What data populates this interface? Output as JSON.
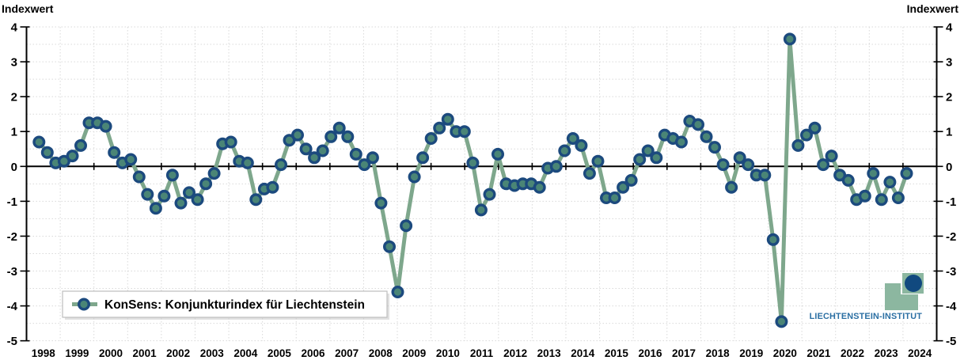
{
  "axis_titles": {
    "left": "Indexwert",
    "right": "Indexwert"
  },
  "legend": {
    "label": "KonSens: Konjunkturindex für Liechtenstein"
  },
  "logo": {
    "text": "LIECHTENSTEIN-INSTITUT"
  },
  "chart_data": {
    "type": "line",
    "title": "",
    "frequency": "quarterly",
    "x_start": "1998-Q1",
    "x_end": "2024-Q1",
    "ylabel_left": "Indexwert",
    "ylabel_right": "Indexwert",
    "ylim": [
      -5,
      4
    ],
    "y_tick_step": 1,
    "y_tick_labels": [
      "4",
      "3",
      "2",
      "1",
      "0",
      "-1",
      "-2",
      "-3",
      "-4",
      "-5"
    ],
    "year_tick_labels": [
      "1998",
      "1999",
      "2000",
      "2001",
      "2002",
      "2003",
      "2004",
      "2005",
      "2006",
      "2007",
      "2008",
      "2009",
      "2010",
      "2011",
      "2012",
      "2013",
      "2014",
      "2015",
      "2016",
      "2017",
      "2018",
      "2019",
      "2020",
      "2021",
      "2022",
      "2023",
      "2024"
    ],
    "grid": {
      "horizontal_step": 0.5,
      "vertical": "yearly",
      "style": "dotted"
    },
    "legend_position": "bottom-left-inside",
    "series": [
      {
        "name": "KonSens: Konjunkturindex für Liechtenstein",
        "values": [
          0.7,
          0.4,
          0.1,
          0.15,
          0.3,
          0.6,
          1.25,
          1.25,
          1.15,
          0.4,
          0.1,
          0.2,
          -0.3,
          -0.8,
          -1.2,
          -0.85,
          -0.25,
          -1.05,
          -0.75,
          -0.95,
          -0.5,
          -0.2,
          0.65,
          0.7,
          0.15,
          0.1,
          -0.95,
          -0.65,
          -0.6,
          0.05,
          0.75,
          0.9,
          0.5,
          0.25,
          0.45,
          0.85,
          1.1,
          0.85,
          0.35,
          0.05,
          0.25,
          -1.05,
          -2.3,
          -3.6,
          -1.7,
          -0.3,
          0.25,
          0.8,
          1.1,
          1.35,
          1.0,
          1.0,
          0.1,
          -1.25,
          -0.8,
          0.35,
          -0.5,
          -0.55,
          -0.5,
          -0.5,
          -0.6,
          -0.05,
          0.0,
          0.45,
          0.8,
          0.6,
          -0.2,
          0.15,
          -0.9,
          -0.9,
          -0.6,
          -0.4,
          0.2,
          0.45,
          0.25,
          0.9,
          0.8,
          0.7,
          1.3,
          1.2,
          0.85,
          0.55,
          0.05,
          -0.6,
          0.25,
          0.05,
          -0.25,
          -0.25,
          -2.1,
          -4.45,
          3.65,
          0.6,
          0.9,
          1.1,
          0.05,
          0.3,
          -0.25,
          -0.4,
          -0.95,
          -0.85,
          -0.2,
          -0.95,
          -0.45,
          -0.9,
          -0.2
        ]
      }
    ],
    "colors": {
      "line": "#7ea78c",
      "marker_fill": "#4a8576",
      "marker_stroke": "#1c4a7e",
      "grid": "#d9d9d9",
      "axis": "#000000",
      "legend_border": "#bdbdbd",
      "legend_shadow": "#c9c9c9",
      "logo_green": "#8cb7a0",
      "logo_navy": "#11497f",
      "logo_text": "#2b6fa3"
    }
  }
}
